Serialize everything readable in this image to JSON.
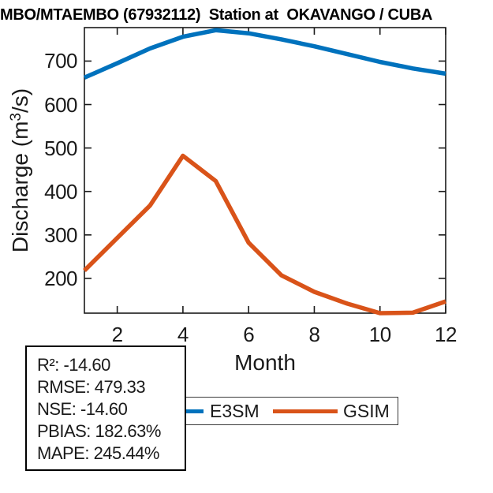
{
  "title": "MBO/MTAEMBO (67932112)  Station at  OKAVANGO / CUBA",
  "chart_data": {
    "type": "line",
    "title": "MBO/MTAEMBO (67932112)  Station at  OKAVANGO / CUBA",
    "xlabel": "Month",
    "ylabel": "Discharge (m³/s)",
    "x": [
      1,
      2,
      3,
      4,
      5,
      6,
      7,
      8,
      9,
      10,
      11,
      12
    ],
    "series": [
      {
        "name": "E3SM",
        "color": "#0072BD",
        "values": [
          662,
          695,
          729,
          756,
          771,
          764,
          750,
          734,
          716,
          698,
          683,
          671
        ]
      },
      {
        "name": "GSIM",
        "color": "#D95319",
        "values": [
          218,
          293,
          368,
          482,
          424,
          282,
          207,
          169,
          142,
          120,
          121,
          147
        ]
      }
    ],
    "xlim": [
      1,
      12
    ],
    "ylim": [
      120,
      777
    ],
    "x_ticks": [
      2,
      4,
      6,
      8,
      10,
      12
    ],
    "y_ticks": [
      200,
      300,
      400,
      500,
      600,
      700
    ],
    "grid": false,
    "legend_position": "below-horizontal"
  },
  "ylabel_parts": {
    "pre": "Discharge (m",
    "sup": "3",
    "post": "/s)"
  },
  "xlabel_text": "Month",
  "legend": {
    "items": [
      {
        "label": "E3SM",
        "color": "#0072BD"
      },
      {
        "label": "GSIM",
        "color": "#D95319"
      }
    ]
  },
  "stats_box": {
    "lines": [
      "R²: -14.60",
      "RMSE: 479.33",
      "NSE: -14.60",
      "PBIAS: 182.63%",
      "MAPE: 245.44%"
    ]
  }
}
